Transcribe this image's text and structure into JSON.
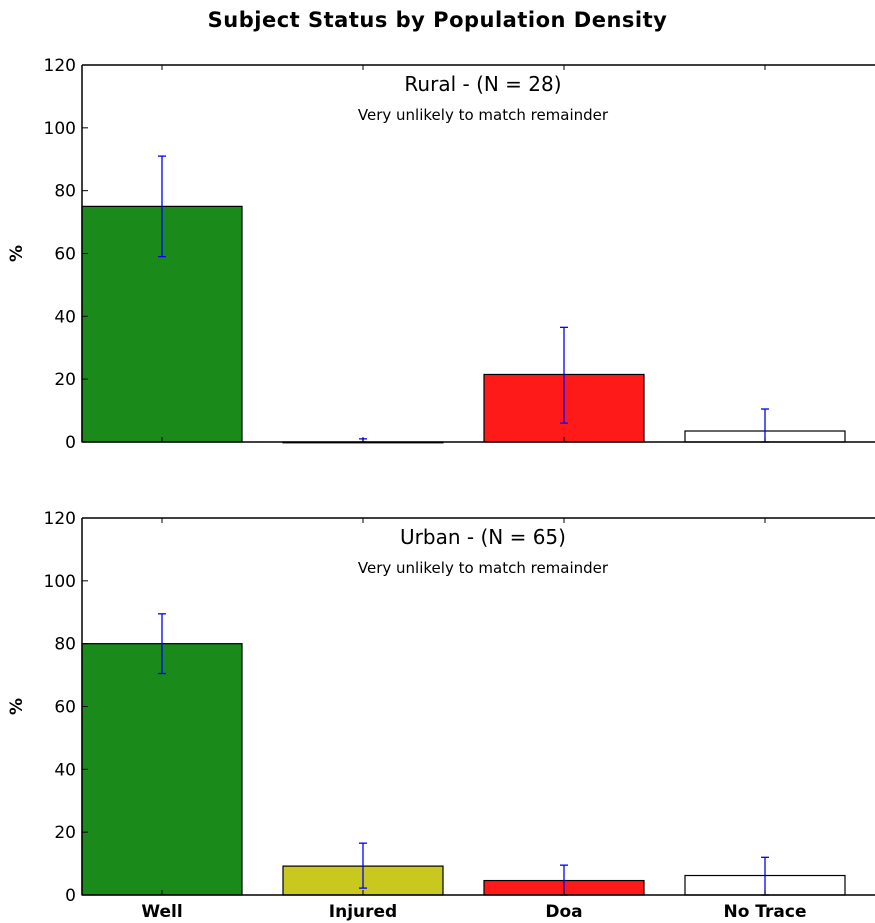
{
  "figure_title": "Subject Status by Population Density",
  "chart_data": [
    {
      "type": "bar",
      "title": "Rural - (N = 28)",
      "subtitle": "Very unlikely to match remainder",
      "ylabel": "%",
      "ylim": [
        0,
        120
      ],
      "yticks": [
        0,
        20,
        40,
        60,
        80,
        100,
        120
      ],
      "categories": [
        "Well",
        "Injured",
        "Doa",
        "No Trace"
      ],
      "show_xtick_labels": false,
      "values": [
        75,
        0,
        21.5,
        3.5
      ],
      "error_low": [
        59,
        0,
        6,
        0
      ],
      "error_high": [
        91,
        1,
        36.5,
        10.5
      ],
      "colors": [
        "#1a8a1a",
        "#c8c81e",
        "#ff1a1a",
        "#ffffff"
      ],
      "error_color": "#0000ff"
    },
    {
      "type": "bar",
      "title": "Urban - (N = 65)",
      "subtitle": "Very unlikely to match remainder",
      "ylabel": "%",
      "ylim": [
        0,
        120
      ],
      "yticks": [
        0,
        20,
        40,
        60,
        80,
        100,
        120
      ],
      "categories": [
        "Well",
        "Injured",
        "Doa",
        "No Trace"
      ],
      "show_xtick_labels": true,
      "values": [
        80,
        9.2,
        4.6,
        6.2
      ],
      "error_low": [
        70.5,
        2.2,
        0,
        0
      ],
      "error_high": [
        89.5,
        16.5,
        9.5,
        12
      ],
      "colors": [
        "#1a8a1a",
        "#c8c81e",
        "#ff1a1a",
        "#ffffff"
      ],
      "error_color": "#0000ff"
    }
  ]
}
